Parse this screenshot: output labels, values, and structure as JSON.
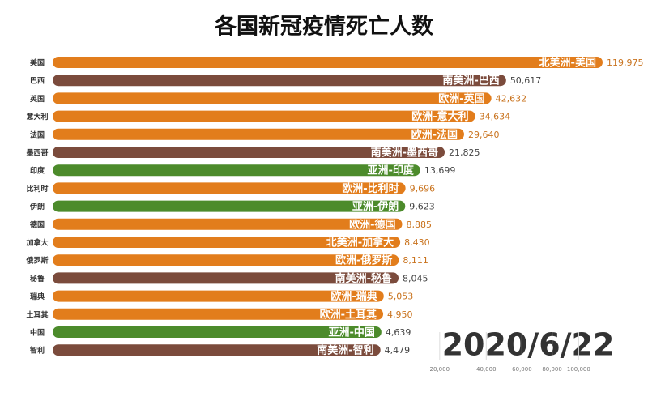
{
  "chart_data": {
    "type": "bar",
    "orientation": "horizontal",
    "scale": "sqrt",
    "title": "各国新冠疫情死亡人数",
    "date": "2020/6/22",
    "categories": [
      "美国",
      "巴西",
      "英国",
      "意大利",
      "法国",
      "墨西哥",
      "印度",
      "比利时",
      "伊朗",
      "德国",
      "加拿大",
      "俄罗斯",
      "秘鲁",
      "瑞典",
      "土耳其",
      "中国",
      "智利"
    ],
    "bar_labels": [
      "北美洲-美国",
      "南美洲-巴西",
      "欧洲-英国",
      "欧洲-意大利",
      "欧洲-法国",
      "南美洲-墨西哥",
      "亚洲-印度",
      "欧洲-比利时",
      "亚洲-伊朗",
      "欧洲-德国",
      "北美洲-加拿大",
      "欧洲-俄罗斯",
      "南美洲-秘鲁",
      "欧洲-瑞典",
      "欧洲-土耳其",
      "亚洲-中国",
      "南美洲-智利"
    ],
    "values": [
      119975,
      50617,
      42632,
      34634,
      29640,
      21825,
      13699,
      9696,
      9623,
      8885,
      8430,
      8111,
      8045,
      5053,
      4950,
      4639,
      4479
    ],
    "value_labels": [
      "119,975",
      "50,617",
      "42,632",
      "34,634",
      "29,640",
      "21,825",
      "13,699",
      "9,696",
      "9,623",
      "8,885",
      "8,430",
      "8,111",
      "8,045",
      "5,053",
      "4,950",
      "4,639",
      "4,479"
    ],
    "colors": [
      "#e27d1c",
      "#7b4b3c",
      "#e27d1c",
      "#e27d1c",
      "#e27d1c",
      "#7b4b3c",
      "#4c8b2b",
      "#e27d1c",
      "#4c8b2b",
      "#e27d1c",
      "#e27d1c",
      "#e27d1c",
      "#7b4b3c",
      "#e27d1c",
      "#e27d1c",
      "#4c8b2b",
      "#7b4b3c"
    ],
    "xlim": [
      0,
      120000
    ],
    "xticks": [
      {
        "value": 20000,
        "label": "20,000"
      },
      {
        "value": 40000,
        "label": "40,000"
      },
      {
        "value": 60000,
        "label": "60,000"
      },
      {
        "value": 80000,
        "label": "80,000"
      },
      {
        "value": 100000,
        "label": "100,000"
      }
    ],
    "grid": true
  }
}
